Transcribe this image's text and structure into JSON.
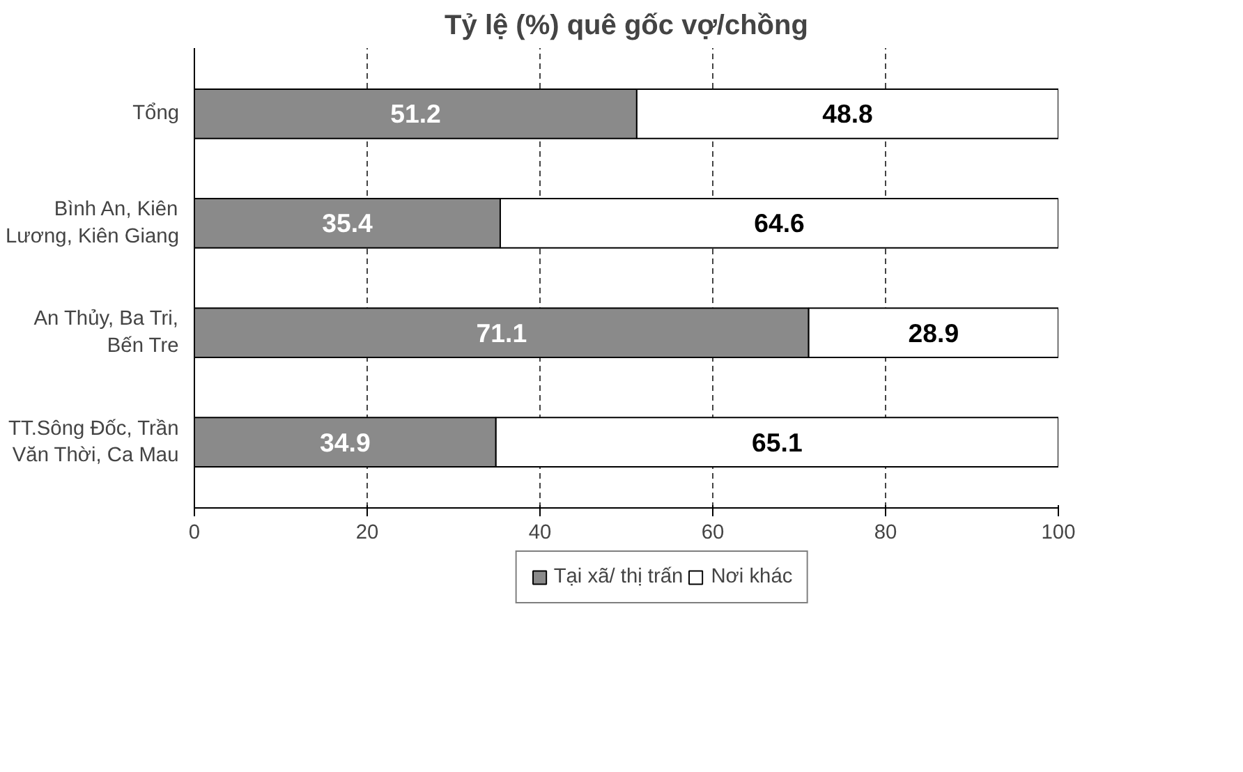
{
  "chart_data": {
    "type": "bar",
    "orientation": "horizontal",
    "stacked": true,
    "title": "Tỷ lệ (%) quê gốc vợ/chồng",
    "categories": [
      "Tổng",
      "Bình An, Kiên Lương, Kiên Giang",
      "An Thủy, Ba Tri, Bến Tre",
      "TT.Sông Đốc, Trần Văn Thời, Ca Mau"
    ],
    "series": [
      {
        "name": "Tại xã/ thị trấn",
        "color": "#8a8a8a",
        "values": [
          51.2,
          35.4,
          71.1,
          34.9
        ]
      },
      {
        "name": "Nơi khác",
        "color": "#ffffff",
        "values": [
          48.8,
          64.6,
          28.9,
          65.1
        ]
      }
    ],
    "xlim": [
      0,
      100
    ],
    "xticks": [
      0,
      20,
      40,
      60,
      80,
      100
    ],
    "grid": "x",
    "legend": "bottom",
    "data_labels": true
  }
}
